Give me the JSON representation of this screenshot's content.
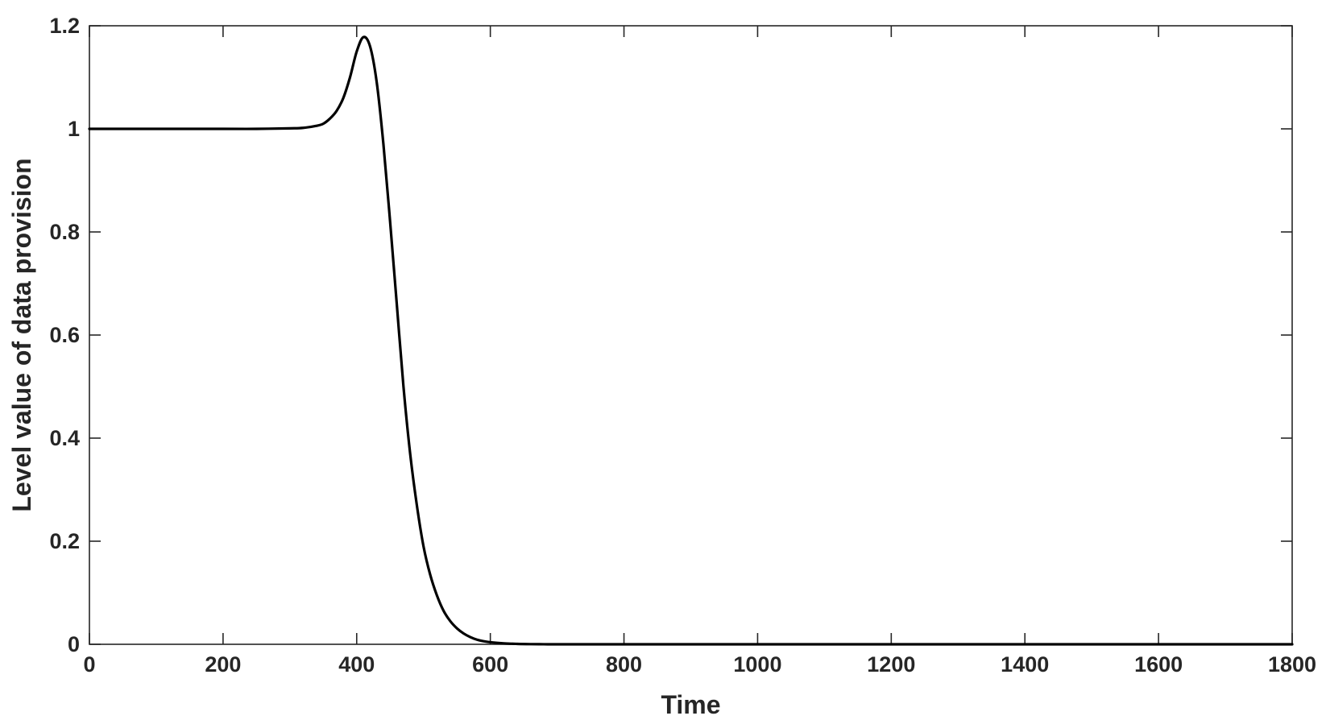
{
  "chart_data": {
    "type": "line",
    "xlabel": "Time",
    "ylabel": "Level value of data provision",
    "xlim": [
      0,
      1800
    ],
    "ylim": [
      0,
      1.2
    ],
    "xticks": [
      0,
      200,
      400,
      600,
      800,
      1000,
      1200,
      1400,
      1600,
      1800
    ],
    "yticks": [
      0,
      0.2,
      0.4,
      0.6,
      0.8,
      1,
      1.2
    ],
    "grid": false,
    "line_color": "#000000",
    "series": [
      {
        "x": [
          0,
          100,
          200,
          250,
          300,
          320,
          340,
          350,
          360,
          370,
          380,
          390,
          400,
          410,
          420,
          430,
          440,
          450,
          460,
          470,
          480,
          490,
          500,
          510,
          520,
          530,
          540,
          550,
          560,
          570,
          580,
          590,
          600,
          620,
          640,
          660,
          680,
          700,
          750,
          800,
          1000,
          1200,
          1400,
          1600,
          1800
        ],
        "y": [
          1.0,
          1.0,
          1.0,
          1.0,
          1.001,
          1.002,
          1.006,
          1.01,
          1.02,
          1.035,
          1.06,
          1.1,
          1.15,
          1.178,
          1.16,
          1.09,
          0.97,
          0.82,
          0.66,
          0.5,
          0.37,
          0.27,
          0.19,
          0.135,
          0.095,
          0.065,
          0.045,
          0.031,
          0.021,
          0.014,
          0.009,
          0.006,
          0.004,
          0.0018,
          0.0008,
          0.0003,
          0.0001,
          0.0,
          0.0,
          0.0,
          0.0,
          0.0,
          0.0,
          0.0,
          0.0
        ]
      }
    ]
  }
}
